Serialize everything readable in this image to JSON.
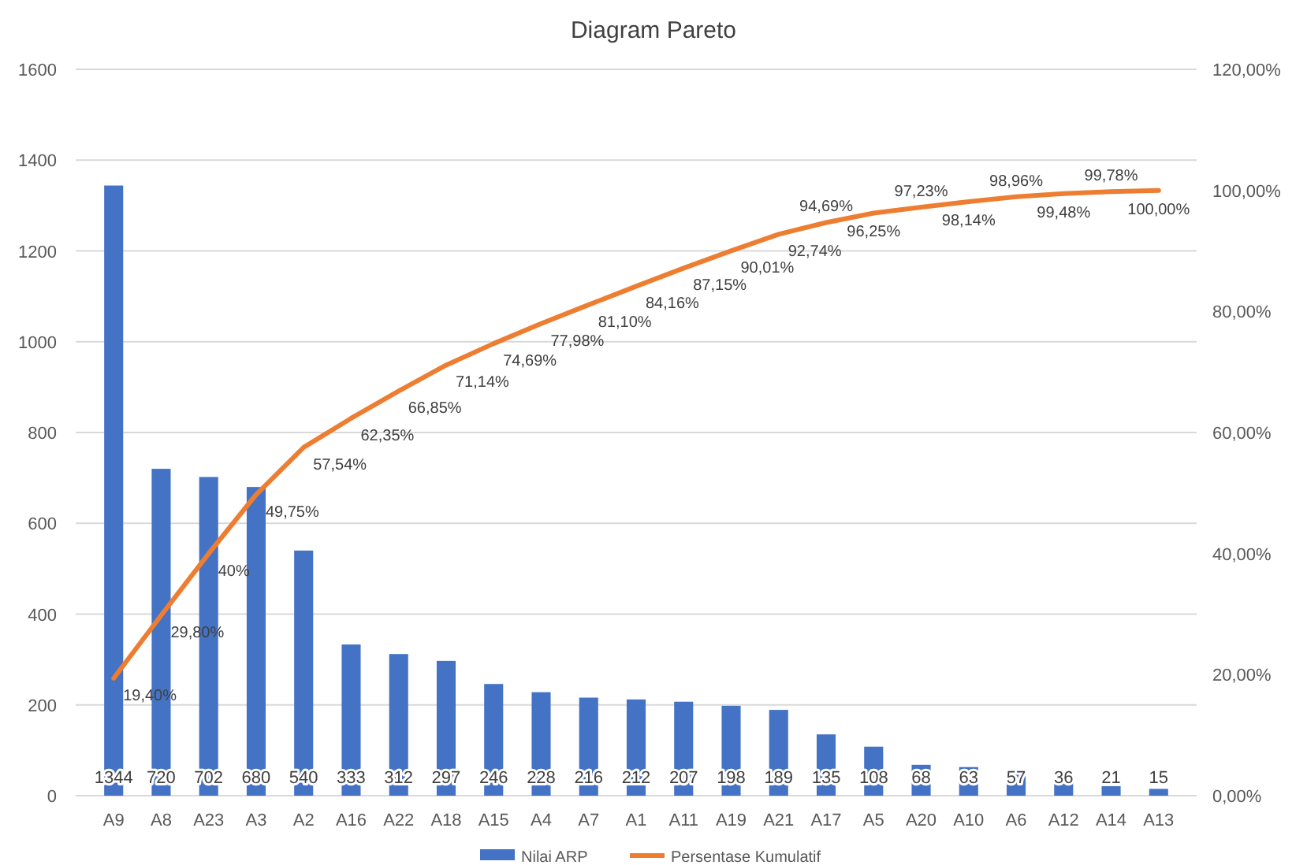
{
  "chart_data": {
    "type": "bar",
    "title": "Diagram Pareto",
    "categories": [
      "A9",
      "A8",
      "A23",
      "A3",
      "A2",
      "A16",
      "A22",
      "A18",
      "A15",
      "A4",
      "A7",
      "A1",
      "A11",
      "A19",
      "A21",
      "A17",
      "A5",
      "A20",
      "A10",
      "A6",
      "A12",
      "A14",
      "A13"
    ],
    "series": [
      {
        "name": "Nilai ARP",
        "color": "#4472c4",
        "values": [
          1344,
          720,
          702,
          680,
          540,
          333,
          312,
          297,
          246,
          228,
          216,
          212,
          207,
          198,
          189,
          135,
          108,
          68,
          63,
          57,
          36,
          21,
          15
        ]
      },
      {
        "name": "Persentase Kumulatif",
        "type": "line",
        "axis": "y2",
        "color": "#ed7d31",
        "values": [
          19.4,
          29.8,
          40,
          49.75,
          57.54,
          62.35,
          66.85,
          71.14,
          74.69,
          77.98,
          81.1,
          84.16,
          87.15,
          90.01,
          92.74,
          94.69,
          96.25,
          97.23,
          98.14,
          98.96,
          99.48,
          99.78,
          100
        ],
        "value_labels": [
          "19,40%",
          "29,80%",
          "40%",
          "49,75%",
          "57,54%",
          "62,35%",
          "66,85%",
          "71,14%",
          "74,69%",
          "77,98%",
          "81,10%",
          "84,16%",
          "87,15%",
          "90,01%",
          "92,74%",
          "94,69%",
          "96,25%",
          "97,23%",
          "98,14%",
          "98,96%",
          "99,48%",
          "99,78%",
          "100,00%"
        ]
      }
    ],
    "ylim": [
      0,
      1600
    ],
    "yticks": [
      0,
      200,
      400,
      600,
      800,
      1000,
      1200,
      1400,
      1600
    ],
    "y2lim": [
      0,
      120
    ],
    "y2ticks": [
      {
        "value": 0,
        "label": "0,00%"
      },
      {
        "value": 20,
        "label": "20,00%"
      },
      {
        "value": 40,
        "label": "40,00%"
      },
      {
        "value": 60,
        "label": "60,00%"
      },
      {
        "value": 80,
        "label": "80,00%"
      },
      {
        "value": 100,
        "label": "100,00%"
      },
      {
        "value": 120,
        "label": "120,00%"
      }
    ],
    "data_labels": true,
    "grid": "y",
    "legend": "bottom"
  }
}
